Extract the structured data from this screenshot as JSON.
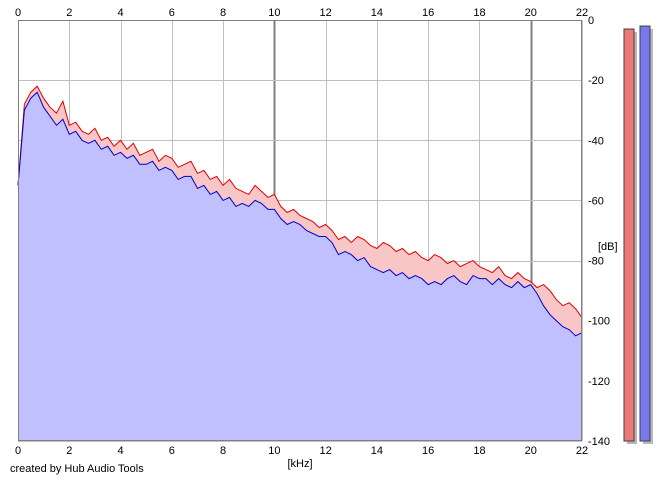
{
  "credit": "created by Hub Audio Tools",
  "colors": {
    "plot_bg": "#ffffff",
    "fill_red": "#f8c6c6",
    "fill_blue": "#c0c0ff",
    "line_red": "#e00000",
    "line_blue": "#0000cc",
    "grid": "#c0c0c0",
    "grid_major": "#808080",
    "meter_red": "#ee7777",
    "meter_blue": "#7777ee"
  },
  "chart_data": {
    "type": "area",
    "xlabel": "[kHz]",
    "ylabel": "[dB]",
    "xlim": [
      0,
      22
    ],
    "ylim": [
      -140,
      0
    ],
    "x_ticks": [
      "0",
      "2",
      "4",
      "6",
      "8",
      "10",
      "12",
      "14",
      "16",
      "18",
      "20",
      "22"
    ],
    "y_ticks": [
      "0",
      "-20",
      "-40",
      "-60",
      "-80",
      "-100",
      "-120",
      "-140"
    ],
    "grid": true,
    "x": [
      0,
      0.25,
      0.5,
      0.75,
      1,
      1.25,
      1.5,
      1.75,
      2,
      2.25,
      2.5,
      2.75,
      3,
      3.25,
      3.5,
      3.75,
      4,
      4.25,
      4.5,
      4.75,
      5,
      5.25,
      5.5,
      5.75,
      6,
      6.25,
      6.5,
      6.75,
      7,
      7.25,
      7.5,
      7.75,
      8,
      8.25,
      8.5,
      8.75,
      9,
      9.25,
      9.5,
      9.75,
      10,
      10.25,
      10.5,
      10.75,
      11,
      11.25,
      11.5,
      11.75,
      12,
      12.25,
      12.5,
      12.75,
      13,
      13.25,
      13.5,
      13.75,
      14,
      14.25,
      14.5,
      14.75,
      15,
      15.25,
      15.5,
      15.75,
      16,
      16.25,
      16.5,
      16.75,
      17,
      17.25,
      17.5,
      17.75,
      18,
      18.25,
      18.5,
      18.75,
      19,
      19.25,
      19.5,
      19.75,
      20,
      20.25,
      20.5,
      20.75,
      21,
      21.25,
      21.5,
      21.75,
      22
    ],
    "series": [
      {
        "values": [
          -55,
          -28,
          -24,
          -22,
          -26,
          -29,
          -31,
          -27,
          -35,
          -34,
          -37,
          -38,
          -36,
          -40,
          -39,
          -42,
          -40,
          -43,
          -41,
          -45,
          -44,
          -43,
          -47,
          -45,
          -46,
          -49,
          -48,
          -47,
          -51,
          -50,
          -53,
          -52,
          -55,
          -53,
          -56,
          -57,
          -58,
          -55,
          -57,
          -59,
          -58,
          -62,
          -64,
          -63,
          -65,
          -66,
          -67,
          -69,
          -68,
          -70,
          -73,
          -72,
          -74,
          -72,
          -73,
          -75,
          -76,
          -74,
          -75,
          -77,
          -76,
          -78,
          -77,
          -79,
          -80,
          -78,
          -79,
          -81,
          -80,
          -82,
          -81,
          -80,
          -82,
          -83,
          -84,
          -82,
          -85,
          -86,
          -84,
          -86,
          -87,
          -89,
          -88,
          -90,
          -93,
          -95,
          -94,
          -96,
          -99
        ]
      },
      {
        "values": [
          -55,
          -30,
          -26,
          -24,
          -29,
          -32,
          -35,
          -33,
          -38,
          -37,
          -40,
          -41,
          -40,
          -43,
          -42,
          -45,
          -44,
          -46,
          -45,
          -48,
          -48,
          -47,
          -50,
          -49,
          -50,
          -53,
          -52,
          -52,
          -56,
          -55,
          -58,
          -57,
          -60,
          -59,
          -62,
          -61,
          -62,
          -60,
          -61,
          -63,
          -63,
          -66,
          -68,
          -67,
          -68,
          -70,
          -71,
          -72,
          -72,
          -74,
          -78,
          -77,
          -78,
          -80,
          -79,
          -82,
          -83,
          -84,
          -83,
          -85,
          -84,
          -86,
          -85,
          -86,
          -88,
          -87,
          -88,
          -86,
          -85,
          -87,
          -88,
          -85,
          -86,
          -86,
          -88,
          -86,
          -88,
          -89,
          -87,
          -89,
          -88,
          -91,
          -95,
          -98,
          -100,
          -102,
          -103,
          -105,
          -104
        ]
      }
    ],
    "meters": [
      {
        "series": 0,
        "level_db": -3
      },
      {
        "series": 1,
        "level_db": -2
      }
    ]
  }
}
